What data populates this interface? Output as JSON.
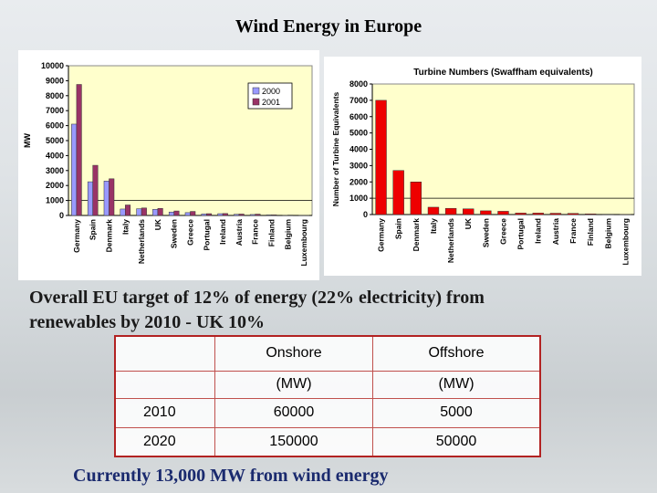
{
  "title": "Wind Energy in Europe",
  "headline_line1": "Overall EU target of 12% of energy (22% electricity) from",
  "headline_line2": "renewables by 2010 - UK 10%",
  "footer": "Currently 13,000 MW from wind energy",
  "targets_table": {
    "header_row1": [
      "",
      "Onshore",
      "Offshore"
    ],
    "header_row2": [
      "",
      "(MW)",
      "(MW)"
    ],
    "rows": [
      [
        "2010",
        "60000",
        "5000"
      ],
      [
        "2020",
        "150000",
        "50000"
      ]
    ]
  },
  "chart_data": [
    {
      "type": "bar",
      "title": "",
      "xlabel": "",
      "ylabel": "MW",
      "ylim": [
        0,
        10000
      ],
      "yticks": [
        0,
        1000,
        2000,
        3000,
        4000,
        5000,
        6000,
        7000,
        8000,
        9000,
        10000
      ],
      "grid": false,
      "legend": "top-right",
      "categories": [
        "Germany",
        "Spain",
        "Denmark",
        "Italy",
        "Netherlands",
        "UK",
        "Sweden",
        "Greece",
        "Portugal",
        "Ireland",
        "Austria",
        "France",
        "Finland",
        "Belgium",
        "Luxembourg"
      ],
      "series": [
        {
          "name": "2000",
          "color": "#9999ff",
          "values": [
            6100,
            2250,
            2300,
            430,
            450,
            410,
            230,
            190,
            100,
            120,
            80,
            65,
            38,
            13,
            10
          ]
        },
        {
          "name": "2001",
          "color": "#993366",
          "values": [
            8750,
            3350,
            2450,
            700,
            500,
            470,
            300,
            270,
            120,
            130,
            95,
            90,
            40,
            25,
            15
          ]
        }
      ]
    },
    {
      "type": "bar",
      "title": "Turbine Numbers (Swaffham equivalents)",
      "xlabel": "",
      "ylabel": "Number of Turbine Equivalents",
      "ylim": [
        0,
        8000
      ],
      "yticks": [
        0,
        1000,
        2000,
        3000,
        4000,
        5000,
        6000,
        7000,
        8000
      ],
      "grid": false,
      "categories": [
        "Germany",
        "Spain",
        "Denmark",
        "Italy",
        "Netherlands",
        "UK",
        "Sweden",
        "Greece",
        "Portugal",
        "Ireland",
        "Austria",
        "France",
        "Finland",
        "Belgium",
        "Luxembourg"
      ],
      "series": [
        {
          "color": "#ee0000",
          "values": [
            7000,
            2700,
            2000,
            450,
            380,
            350,
            230,
            200,
            90,
            90,
            80,
            70,
            40,
            20,
            10
          ]
        }
      ]
    }
  ]
}
